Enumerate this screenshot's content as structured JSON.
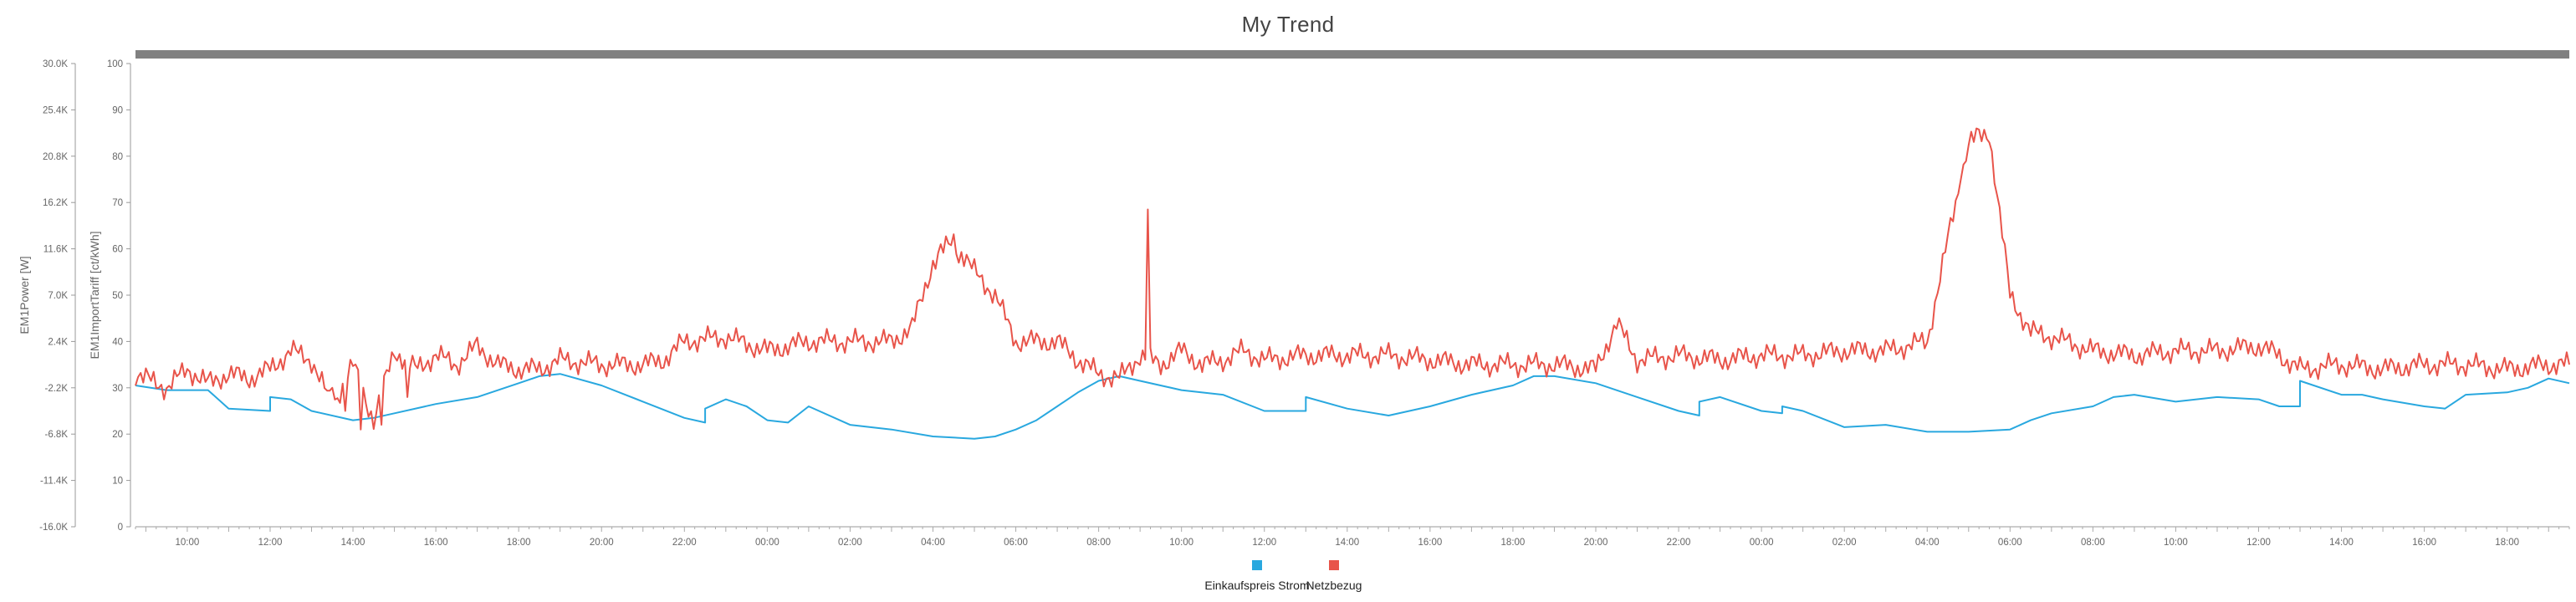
{
  "chart_data": {
    "type": "line",
    "title": "My Trend",
    "y_left_outer": {
      "label": "EM1Power [W]",
      "min": -16000,
      "max": 30000,
      "ticks": [
        "-16.0K",
        "-11.4K",
        "-6.8K",
        "-2.2K",
        "2.4K",
        "7.0K",
        "11.6K",
        "16.2K",
        "20.8K",
        "25.4K",
        "30.0K"
      ]
    },
    "y_left_inner": {
      "label": "EM1ImportTariff [ct/kWh]",
      "min": 0,
      "max": 100,
      "ticks": [
        "0",
        "10",
        "20",
        "30",
        "40",
        "50",
        "60",
        "70",
        "80",
        "90",
        "100"
      ]
    },
    "x_axis": {
      "start_hour": 8.75,
      "end_hour": 67.5,
      "ticks": [
        {
          "hour": 10,
          "label": "10:00"
        },
        {
          "hour": 12,
          "label": "12:00"
        },
        {
          "hour": 14,
          "label": "14:00"
        },
        {
          "hour": 16,
          "label": "16:00"
        },
        {
          "hour": 18,
          "label": "18:00"
        },
        {
          "hour": 20,
          "label": "20:00"
        },
        {
          "hour": 22,
          "label": "22:00"
        },
        {
          "hour": 24,
          "label": "00:00"
        },
        {
          "hour": 26,
          "label": "02:00"
        },
        {
          "hour": 28,
          "label": "04:00"
        },
        {
          "hour": 30,
          "label": "06:00"
        },
        {
          "hour": 32,
          "label": "08:00"
        },
        {
          "hour": 34,
          "label": "10:00"
        },
        {
          "hour": 36,
          "label": "12:00"
        },
        {
          "hour": 38,
          "label": "14:00"
        },
        {
          "hour": 40,
          "label": "16:00"
        },
        {
          "hour": 42,
          "label": "18:00"
        },
        {
          "hour": 44,
          "label": "20:00"
        },
        {
          "hour": 46,
          "label": "22:00"
        },
        {
          "hour": 48,
          "label": "00:00"
        },
        {
          "hour": 50,
          "label": "02:00"
        },
        {
          "hour": 52,
          "label": "04:00"
        },
        {
          "hour": 54,
          "label": "06:00"
        },
        {
          "hour": 56,
          "label": "08:00"
        },
        {
          "hour": 58,
          "label": "10:00"
        },
        {
          "hour": 60,
          "label": "12:00"
        },
        {
          "hour": 62,
          "label": "14:00"
        },
        {
          "hour": 64,
          "label": "16:00"
        },
        {
          "hour": 66,
          "label": "18:00"
        }
      ]
    },
    "series": [
      {
        "name": "Einkaufspreis Strom",
        "color": "#29a8df",
        "axis": "y_left_inner",
        "points": [
          [
            8.75,
            30.5
          ],
          [
            9.5,
            29.5
          ],
          [
            10.5,
            29.5
          ],
          [
            11,
            25.5
          ],
          [
            12,
            25
          ],
          [
            12,
            28
          ],
          [
            12.5,
            27.5
          ],
          [
            13,
            25
          ],
          [
            14,
            23
          ],
          [
            14.5,
            23.5
          ],
          [
            15,
            24.5
          ],
          [
            16,
            26.5
          ],
          [
            17,
            28
          ],
          [
            18,
            31
          ],
          [
            18.5,
            32.5
          ],
          [
            19,
            33
          ],
          [
            20,
            30.5
          ],
          [
            21,
            27
          ],
          [
            22,
            23.5
          ],
          [
            22.5,
            22.5
          ],
          [
            22.5,
            25.5
          ],
          [
            23,
            27.5
          ],
          [
            23.5,
            26
          ],
          [
            24,
            23
          ],
          [
            24.5,
            22.5
          ],
          [
            25,
            26
          ],
          [
            26,
            22
          ],
          [
            27,
            21
          ],
          [
            28,
            19.5
          ],
          [
            29,
            19
          ],
          [
            29.5,
            19.5
          ],
          [
            30,
            21
          ],
          [
            30.5,
            23
          ],
          [
            31,
            26
          ],
          [
            31.5,
            29
          ],
          [
            32,
            31.5
          ],
          [
            32.5,
            32.5
          ],
          [
            33,
            31.5
          ],
          [
            34,
            29.5
          ],
          [
            35,
            28.5
          ],
          [
            36,
            25
          ],
          [
            37,
            25
          ],
          [
            37,
            28
          ],
          [
            38,
            25.5
          ],
          [
            39,
            24
          ],
          [
            40,
            26
          ],
          [
            41,
            28.5
          ],
          [
            42,
            30.5
          ],
          [
            42.5,
            32.5
          ],
          [
            43,
            32.5
          ],
          [
            44,
            31
          ],
          [
            45,
            28
          ],
          [
            46,
            25
          ],
          [
            46.5,
            24
          ],
          [
            46.5,
            27
          ],
          [
            47,
            28
          ],
          [
            48,
            25
          ],
          [
            48.5,
            24.5
          ],
          [
            48.5,
            26
          ],
          [
            49,
            25
          ],
          [
            50,
            21.5
          ],
          [
            51,
            22
          ],
          [
            52,
            20.5
          ],
          [
            53,
            20.5
          ],
          [
            54,
            21
          ],
          [
            54.5,
            23
          ],
          [
            55,
            24.5
          ],
          [
            56,
            26
          ],
          [
            56.5,
            28
          ],
          [
            57,
            28.5
          ],
          [
            58,
            27
          ],
          [
            59,
            28
          ],
          [
            60,
            27.5
          ],
          [
            60.5,
            26
          ],
          [
            61,
            26
          ],
          [
            61,
            31.5
          ],
          [
            62,
            28.5
          ],
          [
            62.5,
            28.5
          ],
          [
            63,
            27.5
          ],
          [
            64,
            26
          ],
          [
            64.5,
            25.5
          ],
          [
            65,
            28.5
          ],
          [
            66,
            29
          ],
          [
            66.5,
            30
          ],
          [
            67,
            32
          ],
          [
            67.5,
            31
          ]
        ]
      },
      {
        "name": "Netzbezug",
        "color": "#e8544a",
        "axis": "y_left_inner",
        "points": [
          [
            8.75,
            33
          ],
          [
            9.5,
            30
          ],
          [
            10,
            34
          ],
          [
            10.5,
            31
          ],
          [
            11,
            33
          ],
          [
            11.5,
            32
          ],
          [
            12,
            34
          ],
          [
            12.5,
            38
          ],
          [
            13,
            36
          ],
          [
            13.5,
            26
          ],
          [
            14,
            35
          ],
          [
            14.5,
            23
          ],
          [
            15,
            38
          ],
          [
            15.5,
            34
          ],
          [
            16,
            37
          ],
          [
            16.5,
            35
          ],
          [
            17,
            39
          ],
          [
            17.5,
            35
          ],
          [
            18,
            34
          ],
          [
            18.5,
            34
          ],
          [
            19,
            36
          ],
          [
            20,
            35
          ],
          [
            21,
            35
          ],
          [
            21.5,
            36
          ],
          [
            22,
            40
          ],
          [
            23,
            41
          ],
          [
            24,
            38
          ],
          [
            25,
            40
          ],
          [
            26,
            40
          ],
          [
            27,
            40
          ],
          [
            27.5,
            43
          ],
          [
            28,
            57
          ],
          [
            28.5,
            62
          ],
          [
            29,
            55
          ],
          [
            29.5,
            50
          ],
          [
            30,
            40
          ],
          [
            31,
            40
          ],
          [
            31.5,
            36
          ],
          [
            32,
            33
          ],
          [
            32.5,
            32
          ],
          [
            33,
            37
          ],
          [
            33.5,
            35
          ],
          [
            34,
            38
          ],
          [
            34.5,
            35
          ],
          [
            35,
            36
          ],
          [
            35.5,
            38
          ],
          [
            36,
            36
          ],
          [
            37,
            37
          ],
          [
            38,
            37
          ],
          [
            39,
            37
          ],
          [
            40,
            36
          ],
          [
            41,
            35
          ],
          [
            42,
            35
          ],
          [
            43,
            35
          ],
          [
            44,
            34
          ],
          [
            44.5,
            44
          ],
          [
            45,
            36
          ],
          [
            46,
            37
          ],
          [
            47,
            36
          ],
          [
            48,
            37
          ],
          [
            49,
            37
          ],
          [
            50,
            38
          ],
          [
            51,
            38
          ],
          [
            52,
            40
          ],
          [
            52.5,
            62
          ],
          [
            53,
            83
          ],
          [
            53.5,
            85
          ],
          [
            54,
            50
          ],
          [
            54.5,
            42
          ],
          [
            55,
            41
          ],
          [
            56,
            38
          ],
          [
            57,
            37
          ],
          [
            58,
            38
          ],
          [
            59,
            38
          ],
          [
            60,
            39
          ],
          [
            60.5,
            37
          ],
          [
            61,
            34
          ],
          [
            62,
            35
          ],
          [
            63,
            34
          ],
          [
            64,
            35
          ],
          [
            65,
            35
          ],
          [
            66,
            34
          ],
          [
            67,
            35
          ],
          [
            67.5,
            35
          ]
        ],
        "spikes": [
          [
            13.5,
            30
          ],
          [
            13.8,
            25
          ],
          [
            14.2,
            21
          ],
          [
            14.7,
            22
          ],
          [
            15.3,
            28
          ],
          [
            33.2,
            68.5
          ],
          [
            28.2,
            61
          ],
          [
            28.6,
            57
          ],
          [
            52.8,
            75
          ],
          [
            53.2,
            86
          ]
        ]
      }
    ],
    "legend": [
      {
        "label": "Einkaufspreis Strom",
        "color": "#29a8df"
      },
      {
        "label": "Netzbezug",
        "color": "#e8544a"
      }
    ],
    "legend_position": "bottom-center"
  }
}
